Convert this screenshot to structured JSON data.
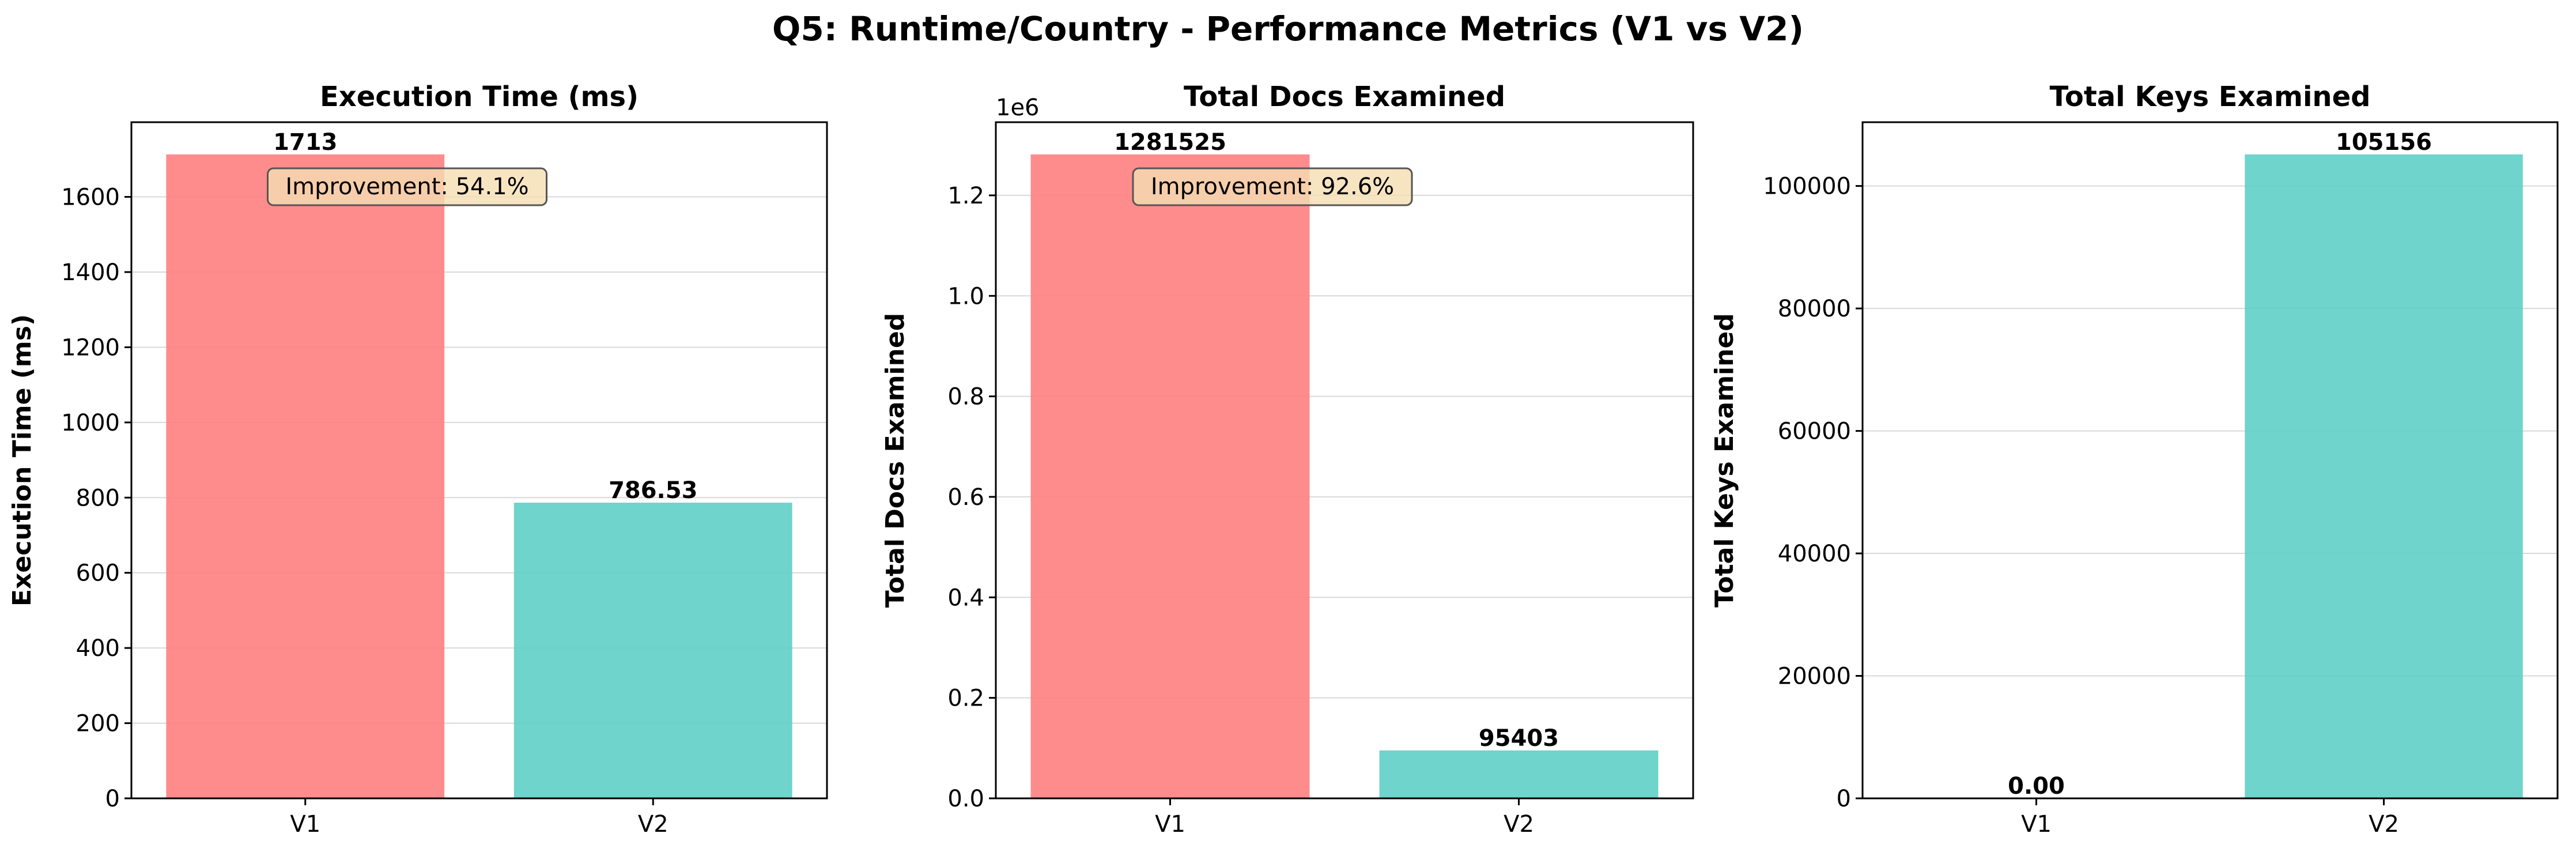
{
  "figure": {
    "title": "Q5: Runtime/Country - Performance Metrics (V1 vs V2)"
  },
  "colors": {
    "v1": "#ff7f7f",
    "v2": "#5ecfc6",
    "annotation_fill": "#f5deb3",
    "annotation_border": "#555555"
  },
  "chart_data": [
    {
      "type": "bar",
      "title": "Execution Time (ms)",
      "ylabel": "Execution Time (ms)",
      "categories": [
        "V1",
        "V2"
      ],
      "values": [
        1713,
        786.53
      ],
      "value_labels": [
        "1713",
        "786.53"
      ],
      "ylim": [
        0,
        1798.65
      ],
      "yticks": [
        0,
        200,
        400,
        600,
        800,
        1000,
        1200,
        1400,
        1600
      ],
      "ytick_labels": [
        "0",
        "200",
        "400",
        "600",
        "800",
        "1000",
        "1200",
        "1400",
        "1600"
      ],
      "offset_text": "",
      "grid": "y",
      "annotation": "Improvement: 54.1%"
    },
    {
      "type": "bar",
      "title": "Total Docs Examined",
      "ylabel": "Total Docs Examined",
      "categories": [
        "V1",
        "V2"
      ],
      "values": [
        1281525,
        95403
      ],
      "value_labels": [
        "1281525",
        "95403"
      ],
      "ylim": [
        0,
        1345601
      ],
      "yticks": [
        0,
        200000,
        400000,
        600000,
        800000,
        1000000,
        1200000
      ],
      "ytick_labels": [
        "0.0",
        "0.2",
        "0.4",
        "0.6",
        "0.8",
        "1.0",
        "1.2"
      ],
      "offset_text": "1e6",
      "grid": "y",
      "annotation": "Improvement: 92.6%"
    },
    {
      "type": "bar",
      "title": "Total Keys Examined",
      "ylabel": "Total Keys Examined",
      "categories": [
        "V1",
        "V2"
      ],
      "values": [
        0,
        105156
      ],
      "value_labels": [
        "0.00",
        "105156"
      ],
      "ylim": [
        0,
        110414
      ],
      "yticks": [
        0,
        20000,
        40000,
        60000,
        80000,
        100000
      ],
      "ytick_labels": [
        "0",
        "20000",
        "40000",
        "60000",
        "80000",
        "100000"
      ],
      "offset_text": "",
      "grid": "y",
      "annotation": ""
    }
  ]
}
